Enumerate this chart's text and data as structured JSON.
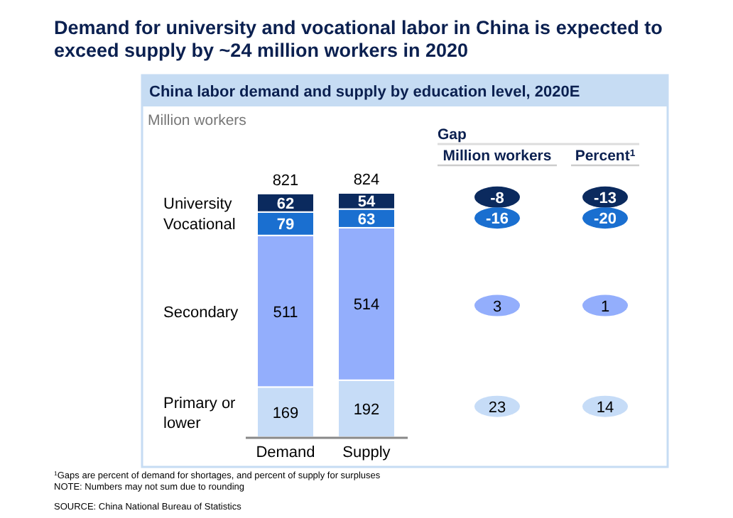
{
  "chart_data": [
    {
      "type": "bar",
      "stacked": true,
      "title": "Demand for university and vocational labor in China is expected to exceed supply by ~24 million workers in 2020",
      "subtitle": "China labor demand and supply by education level, 2020E",
      "ylabel": "Million workers",
      "categories": [
        "Demand",
        "Supply"
      ],
      "series": [
        {
          "name": "Primary or lower",
          "color": "#c6dcf7",
          "values": [
            169,
            192
          ]
        },
        {
          "name": "Secondary",
          "color": "#93aefc",
          "values": [
            511,
            514
          ]
        },
        {
          "name": "Vocational",
          "color": "#1a6fd0",
          "values": [
            79,
            63
          ]
        },
        {
          "name": "University",
          "color": "#0b2a5e",
          "values": [
            62,
            54
          ]
        }
      ],
      "data_labels": true,
      "totals": [
        "821",
        "824"
      ],
      "annotations": [
        "$^{1}$Gaps are percent of demand for shortages, and percent of supply for surpluses",
        "NOTE: Numbers may not sum due to rounding",
        "SOURCE: China National Bureau of Statistics"
      ]
    },
    {
      "type": "other",
      "title": "Gap",
      "colors": [
        "#0b2a5e",
        "#1a6fd0",
        "#93aefc",
        "#c6dcf7"
      ],
      "annotations": [
        "Million workers",
        "Percent$^{1}$",
        "-8",
        "-13",
        "-16",
        "-20",
        "3",
        "1",
        "23",
        "14"
      ]
    }
  ]
}
